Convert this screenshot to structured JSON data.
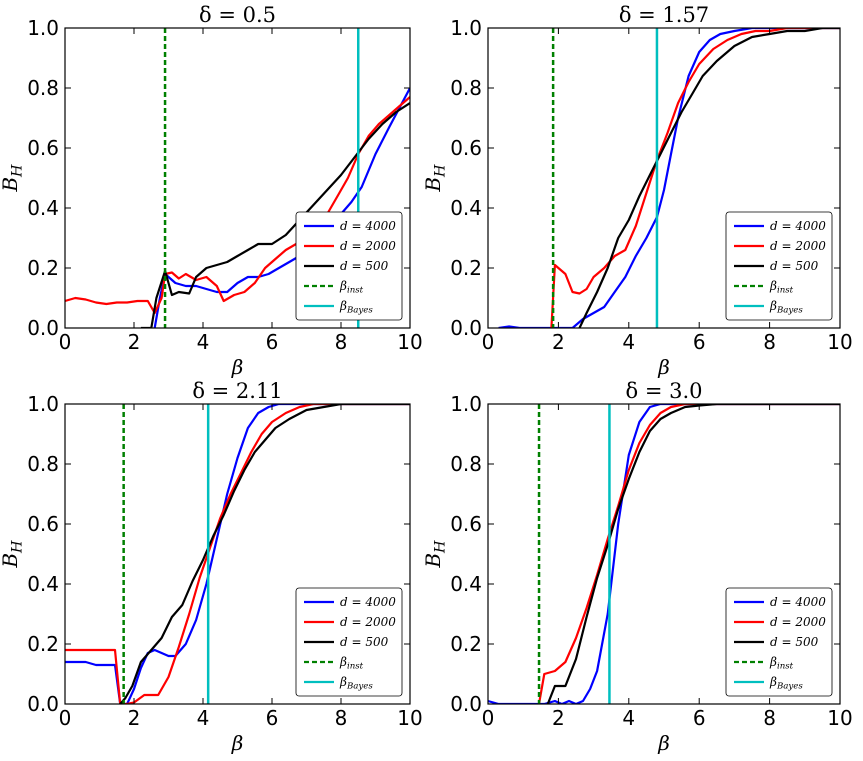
{
  "chart_data": [
    {
      "type": "line",
      "title": "δ = 0.5",
      "xlabel": "β",
      "ylabel": "B_H",
      "xlim": [
        0,
        10
      ],
      "ylim": [
        0,
        1
      ],
      "xticks": [
        "0",
        "2",
        "4",
        "6",
        "8",
        "10"
      ],
      "yticks": [
        "0.0",
        "0.2",
        "0.4",
        "0.6",
        "0.8",
        "1.0"
      ],
      "beta_inst": 2.9,
      "beta_bayes": 8.5,
      "series": [
        {
          "name": "d = 4000",
          "color": "#0000ff",
          "x": [
            2.6,
            2.75,
            2.9,
            3.2,
            3.5,
            3.8,
            4.1,
            4.4,
            4.7,
            5.0,
            5.3,
            5.6,
            5.9,
            6.2,
            6.5,
            6.8,
            7.1,
            7.4,
            7.7,
            8.0,
            8.3,
            8.6,
            9.0,
            9.4,
            10.0
          ],
          "y": [
            0.0,
            0.1,
            0.18,
            0.15,
            0.14,
            0.14,
            0.13,
            0.12,
            0.12,
            0.15,
            0.17,
            0.17,
            0.18,
            0.2,
            0.22,
            0.24,
            0.27,
            0.3,
            0.34,
            0.38,
            0.42,
            0.47,
            0.58,
            0.67,
            0.8
          ]
        },
        {
          "name": "d = 2000",
          "color": "#ff0000",
          "x": [
            0.0,
            0.3,
            0.6,
            0.9,
            1.2,
            1.5,
            1.8,
            2.1,
            2.4,
            2.6,
            2.8,
            2.9,
            3.1,
            3.3,
            3.5,
            3.8,
            4.1,
            4.4,
            4.6,
            4.9,
            5.2,
            5.5,
            5.8,
            6.1,
            6.4,
            6.7,
            7.0,
            7.3,
            7.6,
            7.9,
            8.2,
            8.5,
            8.8,
            9.1,
            9.4,
            9.7,
            10.0
          ],
          "y": [
            0.09,
            0.1,
            0.095,
            0.085,
            0.08,
            0.085,
            0.085,
            0.09,
            0.09,
            0.05,
            0.1,
            0.18,
            0.185,
            0.165,
            0.18,
            0.16,
            0.17,
            0.14,
            0.09,
            0.11,
            0.12,
            0.15,
            0.2,
            0.23,
            0.26,
            0.28,
            0.31,
            0.33,
            0.38,
            0.44,
            0.5,
            0.58,
            0.64,
            0.68,
            0.71,
            0.74,
            0.77
          ]
        },
        {
          "name": "d = 500",
          "color": "#000000",
          "x": [
            2.2,
            2.5,
            2.65,
            2.9,
            3.1,
            3.3,
            3.6,
            3.8,
            4.1,
            4.4,
            4.7,
            5.0,
            5.3,
            5.6,
            6.0,
            6.4,
            6.8,
            7.2,
            7.6,
            8.0,
            8.4,
            8.8,
            9.2,
            9.6,
            10.0
          ],
          "y": [
            0.0,
            0.0,
            0.1,
            0.19,
            0.11,
            0.12,
            0.115,
            0.17,
            0.2,
            0.21,
            0.22,
            0.24,
            0.26,
            0.28,
            0.28,
            0.31,
            0.36,
            0.41,
            0.46,
            0.51,
            0.57,
            0.63,
            0.68,
            0.72,
            0.75
          ]
        }
      ],
      "legend": [
        {
          "kind": "line",
          "label": "d = 4000",
          "color": "#0000ff"
        },
        {
          "kind": "line",
          "label": "d = 2000",
          "color": "#ff0000"
        },
        {
          "kind": "line",
          "label": "d = 500",
          "color": "#000000"
        },
        {
          "kind": "dashed",
          "label": "β_inst",
          "color": "#008000"
        },
        {
          "kind": "line",
          "label": "β_Bayes",
          "color": "#00bfbf"
        }
      ]
    },
    {
      "type": "line",
      "title": "δ = 1.57",
      "xlabel": "β",
      "ylabel": "B_H",
      "xlim": [
        0,
        10
      ],
      "ylim": [
        0,
        1
      ],
      "xticks": [
        "0",
        "2",
        "4",
        "6",
        "8",
        "10"
      ],
      "yticks": [
        "0.0",
        "0.2",
        "0.4",
        "0.6",
        "0.8",
        "1.0"
      ],
      "beta_inst": 1.85,
      "beta_bayes": 4.8,
      "series": [
        {
          "name": "d = 4000",
          "color": "#0000ff",
          "x": [
            0.3,
            0.6,
            0.9,
            2.4,
            2.7,
            3.0,
            3.3,
            3.6,
            3.9,
            4.2,
            4.5,
            4.8,
            5.0,
            5.2,
            5.4,
            5.7,
            6.0,
            6.3,
            6.6,
            7.0,
            7.5,
            8.0,
            9.0,
            10.0
          ],
          "y": [
            0.0,
            0.005,
            0.0,
            0.0,
            0.03,
            0.05,
            0.07,
            0.12,
            0.17,
            0.24,
            0.3,
            0.37,
            0.46,
            0.58,
            0.7,
            0.84,
            0.92,
            0.96,
            0.98,
            0.99,
            1.0,
            1.0,
            1.0,
            1.0
          ]
        },
        {
          "name": "d = 2000",
          "color": "#ff0000",
          "x": [
            1.8,
            1.9,
            2.0,
            2.2,
            2.4,
            2.6,
            2.8,
            3.0,
            3.3,
            3.6,
            3.9,
            4.2,
            4.5,
            4.8,
            5.1,
            5.4,
            5.7,
            6.0,
            6.4,
            6.8,
            7.2,
            7.6,
            8.0,
            8.5,
            9.0,
            10.0
          ],
          "y": [
            0.0,
            0.21,
            0.2,
            0.18,
            0.12,
            0.115,
            0.13,
            0.17,
            0.2,
            0.24,
            0.26,
            0.34,
            0.45,
            0.56,
            0.65,
            0.75,
            0.82,
            0.88,
            0.93,
            0.96,
            0.98,
            0.99,
            0.99,
            1.0,
            1.0,
            1.0
          ]
        },
        {
          "name": "d = 500",
          "color": "#000000",
          "x": [
            2.6,
            2.8,
            3.1,
            3.4,
            3.7,
            4.0,
            4.3,
            4.6,
            4.9,
            5.2,
            5.5,
            5.8,
            6.1,
            6.5,
            7.0,
            7.5,
            8.0,
            8.5,
            9.0,
            9.5,
            10.0
          ],
          "y": [
            0.0,
            0.05,
            0.12,
            0.2,
            0.3,
            0.36,
            0.44,
            0.51,
            0.58,
            0.65,
            0.72,
            0.78,
            0.84,
            0.89,
            0.94,
            0.97,
            0.98,
            0.99,
            0.99,
            1.0,
            1.0
          ]
        }
      ],
      "legend": [
        {
          "kind": "line",
          "label": "d = 4000",
          "color": "#0000ff"
        },
        {
          "kind": "line",
          "label": "d = 2000",
          "color": "#ff0000"
        },
        {
          "kind": "line",
          "label": "d = 500",
          "color": "#000000"
        },
        {
          "kind": "dashed",
          "label": "β_inst",
          "color": "#008000"
        },
        {
          "kind": "line",
          "label": "β_Bayes",
          "color": "#00bfbf"
        }
      ]
    },
    {
      "type": "line",
      "title": "δ = 2.11",
      "xlabel": "β",
      "ylabel": "B_H",
      "xlim": [
        0,
        10
      ],
      "ylim": [
        0,
        1
      ],
      "xticks": [
        "0",
        "2",
        "4",
        "6",
        "8",
        "10"
      ],
      "yticks": [
        "0.0",
        "0.2",
        "0.4",
        "0.6",
        "0.8",
        "1.0"
      ],
      "beta_inst": 1.7,
      "beta_bayes": 4.15,
      "series": [
        {
          "name": "d = 4000",
          "color": "#0000ff",
          "x": [
            0.0,
            0.3,
            0.6,
            0.9,
            1.2,
            1.45,
            1.6,
            1.8,
            2.0,
            2.2,
            2.4,
            2.6,
            2.8,
            3.0,
            3.2,
            3.5,
            3.8,
            4.1,
            4.4,
            4.7,
            5.0,
            5.3,
            5.6,
            5.9,
            6.2,
            6.6,
            7.0,
            7.5,
            8.0,
            9.0,
            10.0
          ],
          "y": [
            0.14,
            0.14,
            0.14,
            0.13,
            0.13,
            0.13,
            0.0,
            0.0,
            0.05,
            0.12,
            0.17,
            0.18,
            0.17,
            0.16,
            0.16,
            0.2,
            0.28,
            0.4,
            0.55,
            0.7,
            0.82,
            0.92,
            0.97,
            0.99,
            1.0,
            1.0,
            1.0,
            1.0,
            1.0,
            1.0,
            1.0
          ]
        },
        {
          "name": "d = 2000",
          "color": "#ff0000",
          "x": [
            0.0,
            0.3,
            0.6,
            0.9,
            1.2,
            1.45,
            1.6,
            1.8,
            2.0,
            2.3,
            2.7,
            3.0,
            3.3,
            3.6,
            3.9,
            4.2,
            4.5,
            4.8,
            5.1,
            5.4,
            5.7,
            6.0,
            6.4,
            6.8,
            7.2,
            7.6,
            8.0,
            8.5,
            9.0,
            10.0
          ],
          "y": [
            0.18,
            0.18,
            0.18,
            0.18,
            0.18,
            0.18,
            0.0,
            0.0,
            0.005,
            0.03,
            0.03,
            0.09,
            0.19,
            0.3,
            0.42,
            0.52,
            0.62,
            0.7,
            0.77,
            0.84,
            0.9,
            0.94,
            0.97,
            0.99,
            1.0,
            1.0,
            1.0,
            1.0,
            1.0,
            1.0
          ]
        },
        {
          "name": "d = 500",
          "color": "#000000",
          "x": [
            1.6,
            1.75,
            1.95,
            2.2,
            2.5,
            2.8,
            3.1,
            3.4,
            3.7,
            4.0,
            4.3,
            4.6,
            4.9,
            5.2,
            5.5,
            5.8,
            6.1,
            6.5,
            7.0,
            7.5,
            8.0,
            9.0,
            10.0
          ],
          "y": [
            0.0,
            0.02,
            0.06,
            0.14,
            0.18,
            0.22,
            0.29,
            0.33,
            0.41,
            0.48,
            0.56,
            0.63,
            0.71,
            0.78,
            0.84,
            0.88,
            0.92,
            0.95,
            0.98,
            0.99,
            1.0,
            1.0,
            1.0
          ]
        }
      ],
      "legend": [
        {
          "kind": "line",
          "label": "d = 4000",
          "color": "#0000ff"
        },
        {
          "kind": "line",
          "label": "d = 2000",
          "color": "#ff0000"
        },
        {
          "kind": "line",
          "label": "d = 500",
          "color": "#000000"
        },
        {
          "kind": "dashed",
          "label": "β_inst",
          "color": "#008000"
        },
        {
          "kind": "line",
          "label": "β_Bayes",
          "color": "#00bfbf"
        }
      ]
    },
    {
      "type": "line",
      "title": "δ = 3.0",
      "xlabel": "β",
      "ylabel": "B_H",
      "xlim": [
        0,
        10
      ],
      "ylim": [
        0,
        1
      ],
      "xticks": [
        "0",
        "2",
        "4",
        "6",
        "8",
        "10"
      ],
      "yticks": [
        "0.0",
        "0.2",
        "0.4",
        "0.6",
        "0.8",
        "1.0"
      ],
      "beta_inst": 1.45,
      "beta_bayes": 3.45,
      "series": [
        {
          "name": "d = 4000",
          "color": "#0000ff",
          "x": [
            0.0,
            0.3,
            0.6,
            0.9,
            1.2,
            1.6,
            1.9,
            2.1,
            2.3,
            2.5,
            2.7,
            2.9,
            3.1,
            3.4,
            3.7,
            4.0,
            4.3,
            4.6,
            4.9,
            5.2,
            5.5,
            6.0,
            7.0,
            8.0,
            10.0
          ],
          "y": [
            0.01,
            0.0,
            0.0,
            0.0,
            0.0,
            0.0,
            0.01,
            0.0,
            0.01,
            0.0,
            0.01,
            0.05,
            0.11,
            0.3,
            0.6,
            0.83,
            0.94,
            0.99,
            1.0,
            1.0,
            1.0,
            1.0,
            1.0,
            1.0,
            1.0
          ]
        },
        {
          "name": "d = 2000",
          "color": "#ff0000",
          "x": [
            1.45,
            1.6,
            1.9,
            2.2,
            2.5,
            2.8,
            3.1,
            3.4,
            3.7,
            4.0,
            4.3,
            4.6,
            4.9,
            5.2,
            5.6,
            6.0,
            6.5,
            7.0,
            8.0,
            10.0
          ],
          "y": [
            0.0,
            0.1,
            0.11,
            0.14,
            0.22,
            0.32,
            0.43,
            0.55,
            0.66,
            0.78,
            0.87,
            0.93,
            0.97,
            0.99,
            1.0,
            1.0,
            1.0,
            1.0,
            1.0,
            1.0
          ]
        },
        {
          "name": "d = 500",
          "color": "#000000",
          "x": [
            1.7,
            1.9,
            2.2,
            2.5,
            2.8,
            3.1,
            3.4,
            3.7,
            4.0,
            4.3,
            4.6,
            4.9,
            5.2,
            5.6,
            6.0,
            6.5,
            7.0,
            7.5,
            8.0,
            9.0,
            10.0
          ],
          "y": [
            0.0,
            0.06,
            0.06,
            0.15,
            0.29,
            0.42,
            0.53,
            0.65,
            0.75,
            0.84,
            0.91,
            0.95,
            0.97,
            0.99,
            0.995,
            1.0,
            1.0,
            1.0,
            1.0,
            1.0,
            1.0
          ]
        }
      ],
      "legend": [
        {
          "kind": "line",
          "label": "d = 4000",
          "color": "#0000ff"
        },
        {
          "kind": "line",
          "label": "d = 2000",
          "color": "#ff0000"
        },
        {
          "kind": "line",
          "label": "d = 500",
          "color": "#000000"
        },
        {
          "kind": "dashed",
          "label": "β_inst",
          "color": "#008000"
        },
        {
          "kind": "line",
          "label": "β_Bayes",
          "color": "#00bfbf"
        }
      ]
    }
  ]
}
